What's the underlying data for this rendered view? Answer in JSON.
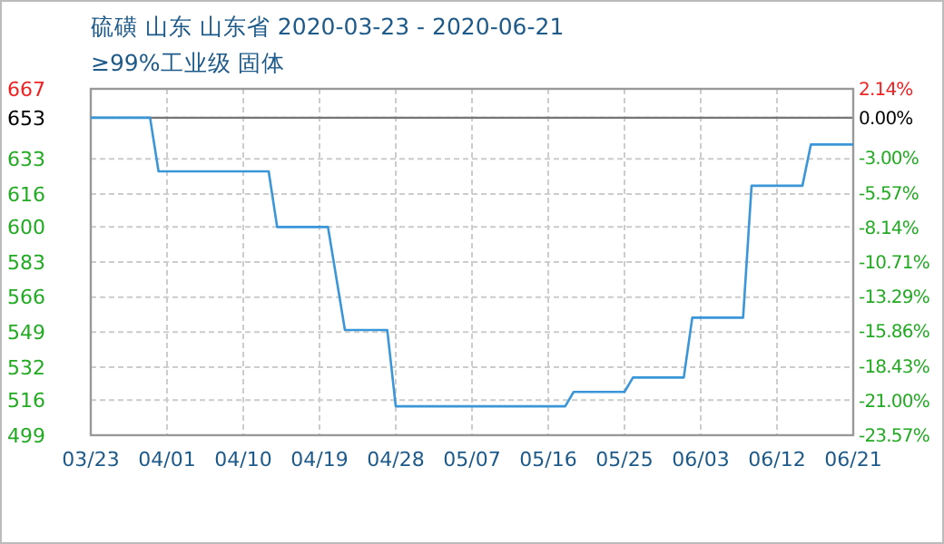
{
  "chart_data": {
    "type": "line",
    "title": "硫磺 山东 山东省 2020-03-23 - 2020-06-21",
    "subtitle": "≥99%工业级 固体",
    "x": [
      "2020-03-23",
      "2020-03-30",
      "2020-03-31",
      "2020-04-13",
      "2020-04-14",
      "2020-04-20",
      "2020-04-22",
      "2020-04-27",
      "2020-04-28",
      "2020-05-18",
      "2020-05-19",
      "2020-05-25",
      "2020-05-26",
      "2020-06-01",
      "2020-06-02",
      "2020-06-08",
      "2020-06-09",
      "2020-06-15",
      "2020-06-16",
      "2020-06-21"
    ],
    "series": [
      {
        "color": "#3a96d8",
        "values": [
          653,
          653,
          627,
          627,
          600,
          600,
          550,
          550,
          513,
          513,
          520,
          520,
          527,
          527,
          556,
          556,
          620,
          620,
          640,
          640
        ]
      }
    ],
    "xlim": [
      "2020-03-23",
      "2020-06-21"
    ],
    "xticks": [
      {
        "value": "2020-03-23",
        "label": "03/23"
      },
      {
        "value": "2020-04-01",
        "label": "04/01"
      },
      {
        "value": "2020-04-10",
        "label": "04/10"
      },
      {
        "value": "2020-04-19",
        "label": "04/19"
      },
      {
        "value": "2020-04-28",
        "label": "04/28"
      },
      {
        "value": "2020-05-07",
        "label": "05/07"
      },
      {
        "value": "2020-05-16",
        "label": "05/16"
      },
      {
        "value": "2020-05-25",
        "label": "05/25"
      },
      {
        "value": "2020-06-03",
        "label": "06/03"
      },
      {
        "value": "2020-06-12",
        "label": "06/12"
      },
      {
        "value": "2020-06-21",
        "label": "06/21"
      }
    ],
    "ylim": [
      499,
      667
    ],
    "yticks": [
      499,
      516,
      532,
      549,
      566,
      583,
      600,
      616,
      633,
      653,
      667
    ],
    "y2lim": [
      -23.57,
      2.14
    ],
    "y2ticks": [
      {
        "value": -23.57,
        "label": "-23.57%"
      },
      {
        "value": -21.0,
        "label": "-21.00%"
      },
      {
        "value": -18.43,
        "label": "-18.43%"
      },
      {
        "value": -15.86,
        "label": "-15.86%"
      },
      {
        "value": -13.29,
        "label": "-13.29%"
      },
      {
        "value": -10.71,
        "label": "-10.71%"
      },
      {
        "value": -8.14,
        "label": "-8.14%"
      },
      {
        "value": -5.57,
        "label": "-5.57%"
      },
      {
        "value": -3.0,
        "label": "-3.00%"
      },
      {
        "value": 0,
        "label": "0.00%"
      },
      {
        "value": 2.14,
        "label": "2.14%"
      }
    ],
    "ref_lines": [
      {
        "axis": "y",
        "value": 653,
        "color": "#777777"
      }
    ],
    "grid": true,
    "marker": "none",
    "line_style": "solid"
  }
}
